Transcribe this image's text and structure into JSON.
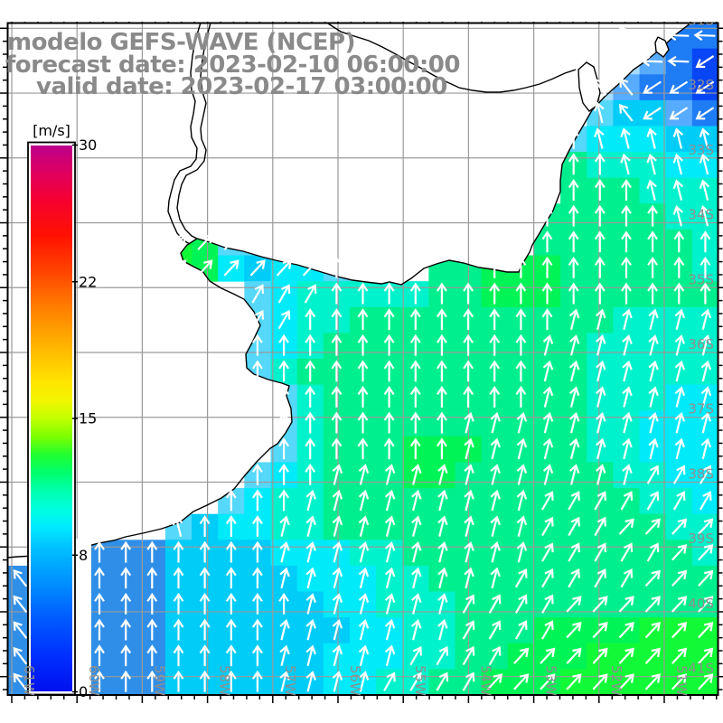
{
  "page": {
    "background": "#ffffff"
  },
  "chart_data": {
    "type": "heatmap",
    "title": "modelo GEFS-WAVE (NCEP)",
    "subtitle1": "forecast date: 2023-02-10 06:00:00",
    "subtitle2": "valid date: 2023-02-17 03:00:00",
    "colorbar": {
      "unit": "[m/s]",
      "min": 0,
      "max": 30,
      "tick_labels": [
        "30",
        "22",
        "15",
        "8",
        "0"
      ],
      "stops": [
        {
          "v": 0,
          "c": "#0010f0"
        },
        {
          "v": 2,
          "c": "#0030ff"
        },
        {
          "v": 4,
          "c": "#005aff"
        },
        {
          "v": 6,
          "c": "#0090ff"
        },
        {
          "v": 8,
          "c": "#00c4ff"
        },
        {
          "v": 9,
          "c": "#00eaff"
        },
        {
          "v": 10,
          "c": "#00ffe0"
        },
        {
          "v": 11,
          "c": "#00ffae"
        },
        {
          "v": 12,
          "c": "#00ff6e"
        },
        {
          "v": 13,
          "c": "#20ff30"
        },
        {
          "v": 14,
          "c": "#7cff00"
        },
        {
          "v": 15,
          "c": "#c2ff00"
        },
        {
          "v": 16,
          "c": "#f2f500"
        },
        {
          "v": 17,
          "c": "#ffe400"
        },
        {
          "v": 19,
          "c": "#ffb400"
        },
        {
          "v": 21,
          "c": "#ff8000"
        },
        {
          "v": 23,
          "c": "#ff4600"
        },
        {
          "v": 25,
          "c": "#ff1200"
        },
        {
          "v": 27,
          "c": "#f50030"
        },
        {
          "v": 28.5,
          "c": "#e0005e"
        },
        {
          "v": 30,
          "c": "#bc008c"
        }
      ]
    },
    "x_axis": {
      "labels": [
        "61W",
        "60W",
        "59W",
        "58W",
        "57W",
        "56W",
        "55W",
        "54W",
        "53W",
        "52W",
        "51W"
      ]
    },
    "y_axis": {
      "labels": [
        "31S",
        "32S",
        "33S",
        "34S",
        "35S",
        "36S",
        "37S",
        "38S",
        "39S",
        "40S",
        "41S"
      ]
    },
    "wind_field": {
      "cols": 27,
      "rows": 26,
      "palette": {
        "1": "#0846f5",
        "2": "#1e7cf5",
        "3": "#58acff",
        "4": "#a8dcff",
        "c": "#55d8fa",
        "C": "#2f8fe8",
        "6": "#00ccf8",
        "7": "#00eafa",
        "8": "#00f2cc",
        "9": "#00ef8e",
        "G": "#00f455",
        "B": "#12fa37"
      },
      "cells": [
        "000000000000000000000004322",
        "000000000000000000000004321",
        "000000000000000000000043221",
        "0000000000000000000000c6632",
        "000000000000000000000c77766",
        "000000000000000000000988877",
        "000000000000000000000999888",
        "000000000000000000009999988",
        "000000BGcc00000000009999998",
        "00000GBG7677cc0099GGG999998",
        "000000000c78888899GGG999999",
        "000000000c78899999999998888",
        "000000000c78999999999988888",
        "000000000c89999999999988888",
        "0000000000c8999999999988877",
        "0000000000c8999999999988777",
        "0000000000c8999GGG999988777",
        "000000000c78999GG9999998877",
        "00000000c788999999999999887",
        "000000c67788999999999999988",
        "00CCCC666677788999999999998",
        "CCCCCC666667778899999999999",
        "CCCCCC666666778889999999999",
        "CCCCCC66666667788999GGGGBBB",
        "CCCCCC6666667778899GGGBBBBB",
        "CCCCCC666666778899GGGBBBBBB"
      ],
      "arrows": [
        ".......................WLLL",
        ".......................WLLS",
        "......................WWSSS",
        "......................wWSSS",
        ".....................Nwwwww",
        ".....................NNwwww",
        ".....................NNNwww",
        "....................NNNNNww",
        "......EEEE..........NNNNNNN",
        ".....EEEEEEENN....NNNNNNNNN",
        ".........eeeNNNNNNNNNNNNNNN",
        ".........eeNNNNNNNNNNnnnnnn",
        ".........NNNNNNNNNNNnnnnnnn",
        ".........NNNNNNNNNNNnnnnnnn",
        "..........NNNNNNNNNNnnnnnnn",
        "..........NNNNNNNnnnnnnnnnn",
        "..........NNNNNNNnnnnnnnnnn",
        ".........NNNnnnnnnnnnnnneee",
        "........NNNnnnnnnnnneeeeeee",
        "......wNNNnnnnnnnnnneeeEEEE",
        "...NNNNNNNnnnnnnnnnneeeeeEE",
        "WWWNNNNNNNnnnnnnnnneeeeeEEE",
        "WWNNNNNNNNNnnnnnneeeeEEEEEE",
        "WWNNNNNNNNnnnnnnneeeeEEEEEE",
        "WNNNNNNNNNnnnnneeeeEEEEEEEE",
        "WNNNNNNNNNnnnneeeeEEEEEEEEE"
      ],
      "arrow_angles": {
        "N": 0,
        "n": 14,
        "e": 30,
        "E": 43,
        "w": -14,
        "W": -38,
        "L": -88,
        "S": -123
      }
    }
  }
}
